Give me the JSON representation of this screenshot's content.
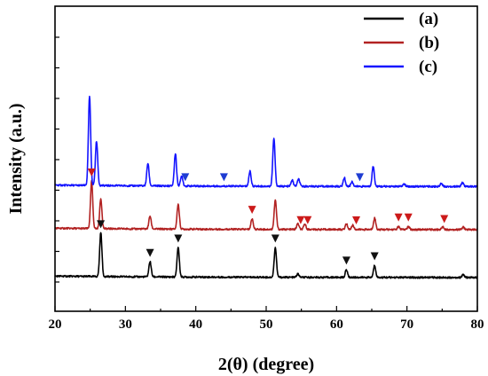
{
  "chart_data": {
    "type": "line",
    "title": "",
    "xlabel": "2(θ) (degree)",
    "ylabel": "Intensity (a.u.)",
    "xlim": [
      20,
      80
    ],
    "xticks": [
      20,
      30,
      40,
      50,
      60,
      70,
      80
    ],
    "y_tick_labels_shown": false,
    "grid": false,
    "legend_position": "top-right",
    "series": [
      {
        "name": "(a)",
        "color": "#000000",
        "baseline": 0.0,
        "peaks": [
          [
            26.5,
            0.92
          ],
          [
            33.5,
            0.32
          ],
          [
            37.5,
            0.62
          ],
          [
            51.3,
            0.62
          ],
          [
            54.5,
            0.07
          ],
          [
            61.4,
            0.16
          ],
          [
            65.4,
            0.25
          ],
          [
            78.0,
            0.06
          ]
        ],
        "markers": [
          26.5,
          33.5,
          37.5,
          51.3,
          61.4,
          65.4
        ],
        "marker_color": "#111111"
      },
      {
        "name": "(b)",
        "color": "#b22222",
        "baseline": 1.0,
        "peaks": [
          [
            25.2,
            1.0
          ],
          [
            26.5,
            0.62
          ],
          [
            33.5,
            0.27
          ],
          [
            37.5,
            0.52
          ],
          [
            48.0,
            0.22
          ],
          [
            51.3,
            0.61
          ],
          [
            54.5,
            0.12
          ],
          [
            55.5,
            0.11
          ],
          [
            61.4,
            0.12
          ],
          [
            62.3,
            0.09
          ],
          [
            65.4,
            0.24
          ],
          [
            68.8,
            0.06
          ],
          [
            70.2,
            0.06
          ],
          [
            75.1,
            0.06
          ],
          [
            78.0,
            0.05
          ]
        ],
        "markers": [
          25.2,
          48.0,
          54.9,
          55.9,
          62.8,
          68.8,
          70.2,
          75.3
        ],
        "marker_color": "#cc1a1a"
      },
      {
        "name": "(c)",
        "color": "#1414ff",
        "baseline": 1.9,
        "peaks": [
          [
            24.9,
            1.86
          ],
          [
            25.9,
            0.93
          ],
          [
            33.2,
            0.47
          ],
          [
            37.1,
            0.68
          ],
          [
            38.0,
            0.21
          ],
          [
            47.7,
            0.32
          ],
          [
            51.1,
            1.0
          ],
          [
            53.7,
            0.13
          ],
          [
            54.6,
            0.15
          ],
          [
            61.1,
            0.18
          ],
          [
            62.2,
            0.1
          ],
          [
            65.2,
            0.42
          ],
          [
            69.6,
            0.05
          ],
          [
            74.9,
            0.07
          ],
          [
            77.9,
            0.08
          ]
        ],
        "markers": [
          38.5,
          44.0,
          63.3
        ],
        "marker_color": "#1e3cd2"
      }
    ]
  }
}
